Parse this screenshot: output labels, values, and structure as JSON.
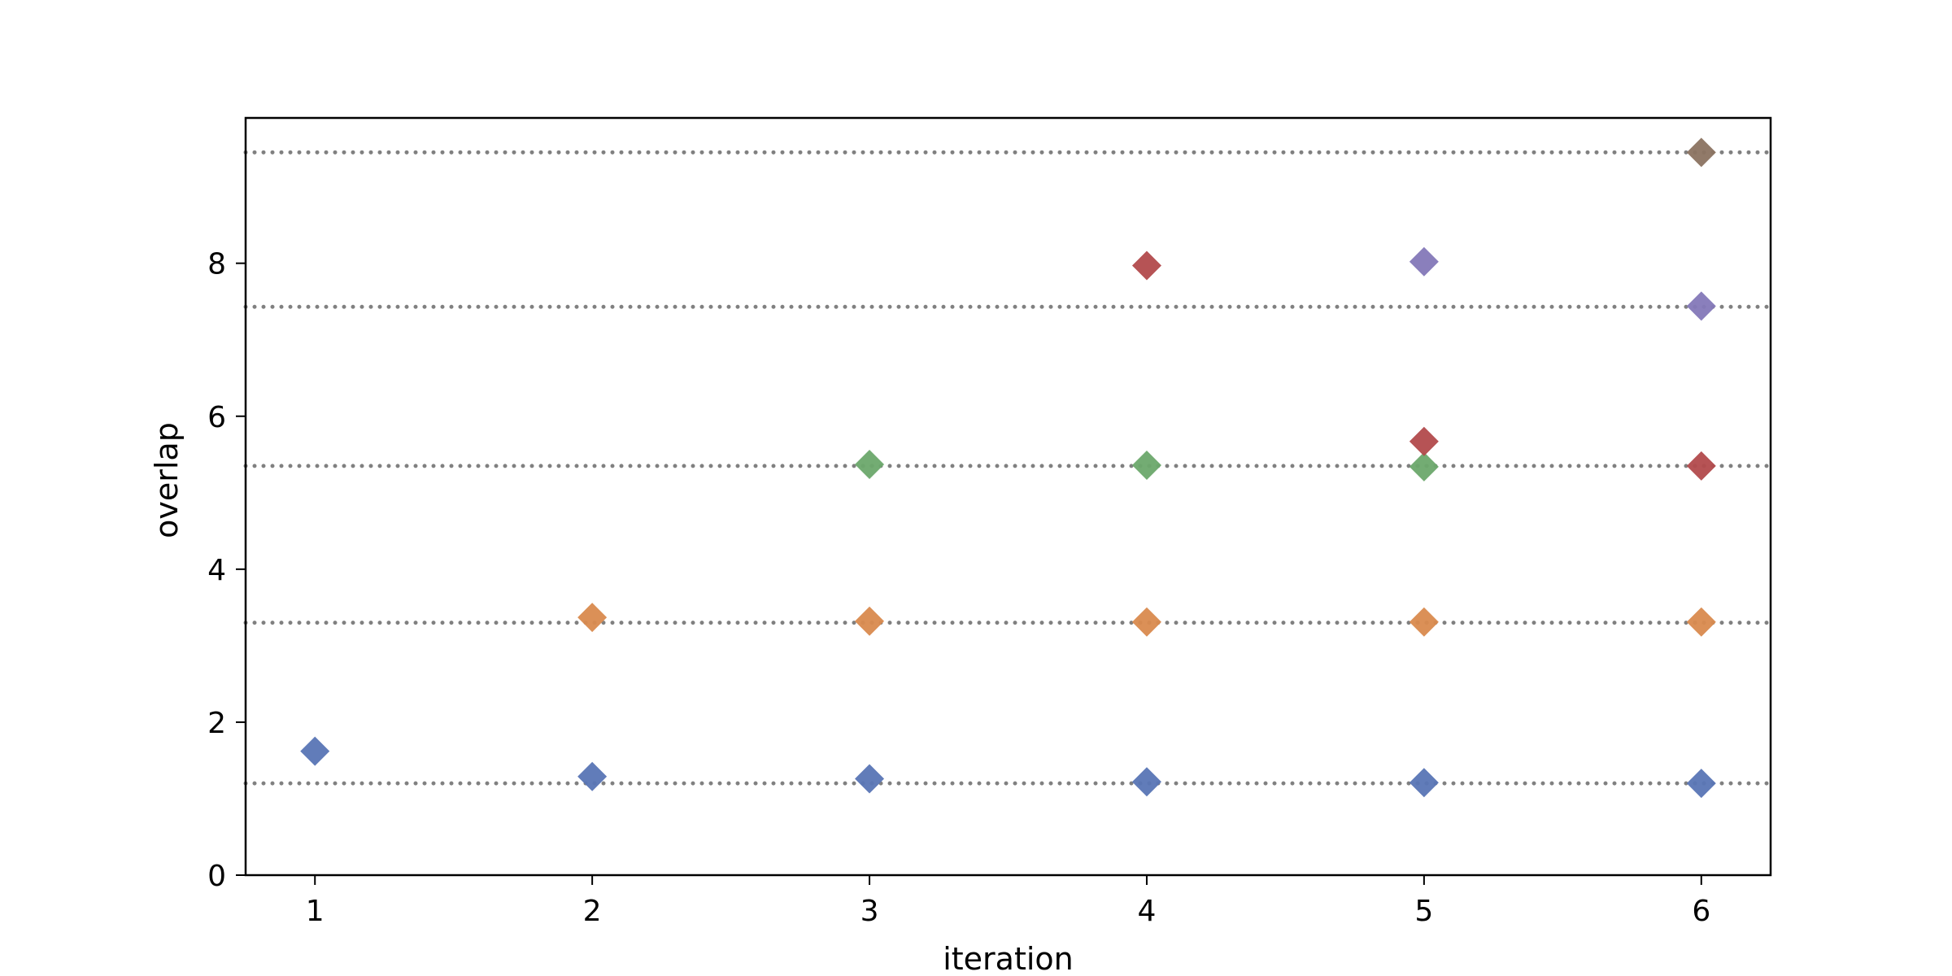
{
  "chart_data": {
    "type": "scatter",
    "title": "",
    "xlabel": "iteration",
    "ylabel": "overlap",
    "xlim": [
      0.75,
      6.25
    ],
    "ylim": [
      0,
      9.9
    ],
    "xticks": [
      1,
      2,
      3,
      4,
      5,
      6
    ],
    "yticks": [
      0,
      2,
      4,
      6,
      8
    ],
    "grid": false,
    "legend": "none",
    "marker": "diamond",
    "reference_lines": {
      "style": "dotted",
      "color": "#808080",
      "y": [
        1.2,
        3.3,
        5.35,
        7.43,
        9.45
      ]
    },
    "series": [
      {
        "color": "#5875b5",
        "x": [
          1,
          2,
          3,
          4,
          5,
          6
        ],
        "y": [
          1.62,
          1.29,
          1.26,
          1.22,
          1.21,
          1.2
        ]
      },
      {
        "color": "#d98a4e",
        "x": [
          2,
          3,
          4,
          5,
          6
        ],
        "y": [
          3.37,
          3.32,
          3.31,
          3.31,
          3.31
        ]
      },
      {
        "color": "#6ba86b",
        "x": [
          3,
          4,
          5
        ],
        "y": [
          5.37,
          5.36,
          5.34
        ]
      },
      {
        "color": "#b24a4c",
        "x": [
          4,
          5,
          6
        ],
        "y": [
          7.97,
          5.67,
          5.35
        ]
      },
      {
        "color": "#8478b8",
        "x": [
          5,
          6
        ],
        "y": [
          8.02,
          7.44
        ]
      },
      {
        "color": "#8b7361",
        "x": [
          6
        ],
        "y": [
          9.45
        ]
      }
    ]
  }
}
